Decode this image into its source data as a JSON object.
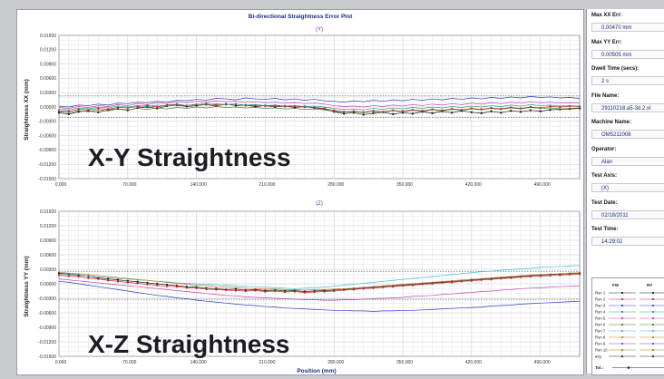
{
  "title": "Bi-directional Straightness Error Plot",
  "x_axis_label": "Position (mm)",
  "colors": {
    "grid": "#c3c6cc",
    "frame": "#6a6e78",
    "title": "#1f2a8a",
    "overlay": "#1b1d22",
    "tol": "#9a3b3b",
    "fwd_marker": "#1b1d22",
    "rev_marker": "#1b1d22"
  },
  "overlays": {
    "top": "X-Y Straightness",
    "bottom": "X-Z Straightness"
  },
  "chart_data": [
    {
      "type": "line",
      "subtitle": "(Y)",
      "ylabel": "Straightness XX (mm)",
      "ylim": [
        -0.015,
        0.015
      ],
      "xlim": [
        0,
        530
      ],
      "y_ticks": [
        "0.01500",
        "0.01200",
        "0.00900",
        "0.00600",
        "0.00300",
        "0.00000",
        "-0.00300",
        "-0.00600",
        "-0.00900",
        "-0.01200",
        "-0.01500"
      ],
      "x_ticks": [
        "0.000",
        "70.000",
        "140.000",
        "210.000",
        "280.000",
        "350.000",
        "420.000",
        "490.000"
      ],
      "x_tick_values": [
        0,
        70,
        140,
        210,
        280,
        350,
        420,
        490
      ],
      "tolerance": [
        0.0023,
        -0.0022
      ],
      "x": [
        0,
        10,
        20,
        30,
        40,
        50,
        60,
        70,
        80,
        90,
        100,
        110,
        120,
        130,
        140,
        150,
        160,
        170,
        180,
        190,
        200,
        210,
        220,
        230,
        240,
        250,
        260,
        270,
        280,
        290,
        300,
        310,
        320,
        330,
        340,
        350,
        360,
        370,
        380,
        390,
        400,
        410,
        420,
        430,
        440,
        450,
        460,
        470,
        480,
        490,
        500,
        510,
        520,
        530
      ],
      "series": [
        {
          "color": "#1c1c1c",
          "values": [
            -0.0012,
            -0.0015,
            -0.001,
            -0.0008,
            -0.0011,
            -0.0006,
            -0.0004,
            -0.0007,
            -0.0002,
            0.0,
            -0.0003,
            0.0002,
            0.0004,
            0.0001,
            0.0003,
            0.0005,
            0.0002,
            0.0006,
            0.0003,
            0.0004,
            0.0001,
            0.0003,
            0.0,
            0.0002,
            -0.0001,
            0.0001,
            -0.0002,
            -0.0004,
            -0.001,
            -0.0014,
            -0.0012,
            -0.0016,
            -0.0013,
            -0.0011,
            -0.0015,
            -0.0012,
            -0.0014,
            -0.001,
            -0.0013,
            -0.0009,
            -0.0012,
            -0.0008,
            -0.0011,
            -0.0013,
            -0.0009,
            -0.0012,
            -0.0008,
            -0.001,
            -0.0007,
            -0.0009,
            -0.0006,
            -0.0005,
            -0.0004,
            -0.0003
          ]
        },
        {
          "color": "#c02a2a",
          "values": [
            -0.0008,
            -0.0009,
            -0.0005,
            -0.0006,
            -0.0003,
            -0.0005,
            -0.0001,
            -0.0002,
            0.0001,
            0.0003,
            0.0,
            0.0004,
            0.0006,
            0.0003,
            0.0005,
            0.0007,
            0.0004,
            0.0005,
            0.0006,
            0.0003,
            0.0004,
            0.0002,
            0.0003,
            0.0001,
            0.0002,
            0.0,
            -0.0001,
            -0.0003,
            -0.0007,
            -0.001,
            -0.0009,
            -0.0011,
            -0.0008,
            -0.001,
            -0.0007,
            -0.0009,
            -0.0006,
            -0.0008,
            -0.0005,
            -0.0007,
            -0.0004,
            -0.0006,
            -0.0003,
            -0.0005,
            -0.0002,
            -0.0004,
            -0.0001,
            -0.0003,
            0.0,
            -0.0002,
            0.0001,
            0.0,
            0.0002,
            0.0001
          ]
        },
        {
          "color": "#2b3cbf",
          "values": [
            0.0002,
            0.0,
            0.0004,
            0.0003,
            0.0006,
            0.0004,
            0.0008,
            0.0007,
            0.001,
            0.0009,
            0.0012,
            0.001,
            0.0014,
            0.0013,
            0.0016,
            0.0014,
            0.0018,
            0.0017,
            0.0015,
            0.0019,
            0.0017,
            0.0016,
            0.0018,
            0.0015,
            0.0017,
            0.0014,
            0.0016,
            0.0013,
            0.0012,
            0.001,
            0.0013,
            0.0011,
            0.0014,
            0.0012,
            0.0015,
            0.0013,
            0.0016,
            0.0014,
            0.0017,
            0.0015,
            0.0018,
            0.0016,
            0.0019,
            0.0017,
            0.002,
            0.0018,
            0.0021,
            0.0019,
            0.0022,
            0.002,
            0.0021,
            0.0019,
            0.002,
            0.0018
          ]
        },
        {
          "color": "#2a9a8a",
          "values": [
            -0.0004,
            -0.0006,
            -0.0002,
            -0.0004,
            0.0,
            -0.0002,
            0.0002,
            0.0,
            0.0003,
            0.0001,
            0.0004,
            0.0002,
            0.0005,
            0.0003,
            0.0006,
            0.0004,
            0.0007,
            0.0005,
            0.0006,
            0.0004,
            0.0005,
            0.0003,
            0.0004,
            0.0002,
            0.0003,
            0.0001,
            0.0002,
            0.0,
            -0.0003,
            -0.0005,
            -0.0004,
            -0.0006,
            -0.0003,
            -0.0005,
            -0.0002,
            -0.0004,
            -0.0001,
            -0.0003,
            0.0,
            -0.0002,
            0.0001,
            -0.0001,
            0.0002,
            0.0,
            0.0003,
            0.0001,
            0.0004,
            0.0002,
            0.0005,
            0.0003,
            0.0004,
            0.0002,
            0.0003,
            0.0002
          ]
        },
        {
          "color": "#c23fb3",
          "values": [
            -0.0001,
            -0.0003,
            0.0001,
            -0.0001,
            0.0003,
            0.0001,
            0.0005,
            0.0003,
            0.0007,
            0.0005,
            0.0009,
            0.0007,
            0.0011,
            0.0009,
            0.0012,
            0.001,
            0.0013,
            0.0011,
            0.0012,
            0.001,
            0.0011,
            0.0009,
            0.001,
            0.0008,
            0.0009,
            0.0007,
            0.0008,
            0.0006,
            0.0003,
            0.0001,
            0.0002,
            0.0,
            0.0003,
            0.0001,
            0.0004,
            0.0002,
            0.0005,
            0.0003,
            0.0006,
            0.0004,
            0.0007,
            0.0005,
            0.0008,
            0.0006,
            0.0009,
            0.0007,
            0.001,
            0.0008,
            0.0011,
            0.0009,
            0.001,
            0.0008,
            0.0009,
            0.0008
          ]
        },
        {
          "color": "#4a7a2a",
          "values": [
            -0.001,
            -0.0012,
            -0.0008,
            -0.001,
            -0.0006,
            -0.0008,
            -0.0004,
            -0.0006,
            -0.0003,
            -0.0005,
            -0.0002,
            -0.0004,
            -0.0001,
            -0.0003,
            0.0,
            -0.0002,
            0.0001,
            -0.0001,
            0.0,
            -0.0002,
            -0.0001,
            -0.0003,
            -0.0002,
            -0.0004,
            -0.0003,
            -0.0005,
            -0.0004,
            -0.0006,
            -0.0009,
            -0.0011,
            -0.001,
            -0.0012,
            -0.0009,
            -0.0011,
            -0.0008,
            -0.001,
            -0.0007,
            -0.0009,
            -0.0006,
            -0.0008,
            -0.0005,
            -0.0007,
            -0.0004,
            -0.0006,
            -0.0003,
            -0.0005,
            -0.0002,
            -0.0004,
            -0.0001,
            -0.0003,
            -0.0002,
            -0.0004,
            -0.0003,
            -0.0002
          ]
        }
      ]
    },
    {
      "type": "line",
      "subtitle": "(Z)",
      "ylabel": "Straightness YY (mm)",
      "ylim": [
        -0.015,
        0.015
      ],
      "xlim": [
        0,
        530
      ],
      "y_ticks": [
        "0.01500",
        "0.01200",
        "0.00900",
        "0.00600",
        "0.00300",
        "0.00000",
        "-0.00300",
        "-0.00600",
        "-0.00900",
        "-0.01200",
        "-0.01500"
      ],
      "x_ticks": [
        "0.000",
        "70.000",
        "140.000",
        "210.000",
        "280.000",
        "350.000",
        "420.000",
        "490.000"
      ],
      "x_tick_values": [
        0,
        70,
        140,
        210,
        280,
        350,
        420,
        490
      ],
      "tolerance": [
        0.0026,
        -0.0032
      ],
      "x": [
        0,
        10,
        20,
        30,
        40,
        50,
        60,
        70,
        80,
        90,
        100,
        110,
        120,
        130,
        140,
        150,
        160,
        170,
        180,
        190,
        200,
        210,
        220,
        230,
        240,
        250,
        260,
        270,
        280,
        290,
        300,
        310,
        320,
        330,
        340,
        350,
        360,
        370,
        380,
        390,
        400,
        410,
        420,
        430,
        440,
        450,
        460,
        470,
        480,
        490,
        500,
        510,
        520,
        530
      ],
      "series": [
        {
          "color": "#1c1c1c",
          "values": [
            0.0022,
            0.002,
            0.0018,
            0.0016,
            0.0012,
            0.001,
            0.0008,
            0.0006,
            0.0004,
            0.0002,
            0.0,
            -0.0002,
            -0.0004,
            -0.0006,
            -0.0007,
            -0.0009,
            -0.001,
            -0.0012,
            -0.0011,
            -0.0013,
            -0.0012,
            -0.0014,
            -0.0013,
            -0.0015,
            -0.0014,
            -0.0016,
            -0.0015,
            -0.0014,
            -0.0013,
            -0.0012,
            -0.001,
            -0.0009,
            -0.0007,
            -0.0006,
            -0.0004,
            -0.0003,
            -0.0001,
            0.0,
            0.0002,
            0.0003,
            0.0005,
            0.0006,
            0.0008,
            0.0009,
            0.0011,
            0.0012,
            0.0014,
            0.0015,
            0.0017,
            0.0018,
            0.0019,
            0.002,
            0.0021,
            0.0022
          ]
        },
        {
          "color": "#c02a2a",
          "values": [
            0.0018,
            0.0016,
            0.0015,
            0.0012,
            0.001,
            0.0007,
            0.0005,
            0.0003,
            0.0001,
            -0.0001,
            -0.0003,
            -0.0005,
            -0.0006,
            -0.0008,
            -0.0009,
            -0.0011,
            -0.0012,
            -0.0013,
            -0.0014,
            -0.0015,
            -0.0014,
            -0.0016,
            -0.0015,
            -0.0017,
            -0.0016,
            -0.0018,
            -0.0017,
            -0.0016,
            -0.0015,
            -0.0013,
            -0.0012,
            -0.001,
            -0.0009,
            -0.0007,
            -0.0006,
            -0.0004,
            -0.0003,
            -0.0001,
            0.0,
            0.0002,
            0.0003,
            0.0005,
            0.0006,
            0.0008,
            0.0009,
            0.0011,
            0.0012,
            0.0014,
            0.0015,
            0.0016,
            0.0017,
            0.0018,
            0.0019,
            0.002
          ]
        },
        {
          "color": "#2b3cbf",
          "values": [
            0.0005,
            0.0003,
            0.0,
            -0.0003,
            -0.0006,
            -0.0009,
            -0.0012,
            -0.0015,
            -0.0018,
            -0.0021,
            -0.0024,
            -0.0026,
            -0.0029,
            -0.0031,
            -0.0034,
            -0.0036,
            -0.0038,
            -0.004,
            -0.0042,
            -0.0044,
            -0.0045,
            -0.0047,
            -0.0048,
            -0.005,
            -0.0051,
            -0.0052,
            -0.0053,
            -0.0054,
            -0.0055,
            -0.0055,
            -0.0056,
            -0.0056,
            -0.0057,
            -0.0056,
            -0.0056,
            -0.0055,
            -0.0055,
            -0.0054,
            -0.0053,
            -0.0052,
            -0.0051,
            -0.005,
            -0.0049,
            -0.0048,
            -0.0046,
            -0.0045,
            -0.0044,
            -0.0042,
            -0.0041,
            -0.004,
            -0.0039,
            -0.0038,
            -0.0037,
            -0.0036
          ]
        },
        {
          "color": "#3bbfcf",
          "values": [
            0.002,
            0.0019,
            0.0017,
            0.0016,
            0.0014,
            0.0013,
            0.0011,
            0.001,
            0.0008,
            0.0007,
            0.0005,
            0.0004,
            0.0002,
            0.0001,
            0.0,
            -0.0001,
            -0.0002,
            -0.0003,
            -0.0004,
            -0.0005,
            -0.0006,
            -0.0007,
            -0.0008,
            -0.0009,
            -0.001,
            -0.0009,
            -0.0008,
            -0.0007,
            -0.0005,
            -0.0003,
            -0.0001,
            0.0001,
            0.0003,
            0.0005,
            0.0007,
            0.0009,
            0.0011,
            0.0013,
            0.0015,
            0.0017,
            0.0019,
            0.0021,
            0.0023,
            0.0025,
            0.0026,
            0.0028,
            0.0029,
            0.0031,
            0.0032,
            0.0034,
            0.0035,
            0.0036,
            0.0037,
            0.0038
          ]
        },
        {
          "color": "#c23fb3",
          "values": [
            0.001,
            0.0008,
            0.0006,
            0.0004,
            0.0002,
            0.0,
            -0.0002,
            -0.0004,
            -0.0006,
            -0.0008,
            -0.001,
            -0.0012,
            -0.0014,
            -0.0016,
            -0.0018,
            -0.002,
            -0.0022,
            -0.0024,
            -0.0025,
            -0.0027,
            -0.0028,
            -0.0029,
            -0.003,
            -0.0031,
            -0.0032,
            -0.0033,
            -0.0033,
            -0.0034,
            -0.0034,
            -0.0033,
            -0.0033,
            -0.0032,
            -0.0031,
            -0.003,
            -0.0029,
            -0.0028,
            -0.0026,
            -0.0025,
            -0.0024,
            -0.0022,
            -0.0021,
            -0.0019,
            -0.0018,
            -0.0016,
            -0.0015,
            -0.0013,
            -0.0012,
            -0.001,
            -0.0009,
            -0.0008,
            -0.0007,
            -0.0006,
            -0.0005,
            -0.0004
          ]
        },
        {
          "color": "#c77a2a",
          "values": [
            0.0024,
            0.0022,
            0.0021,
            0.0019,
            0.0017,
            0.0015,
            0.0013,
            0.0011,
            0.0009,
            0.0007,
            0.0005,
            0.0003,
            0.0001,
            -0.0001,
            -0.0003,
            -0.0004,
            -0.0006,
            -0.0007,
            -0.0008,
            -0.0009,
            -0.001,
            -0.0011,
            -0.0011,
            -0.0012,
            -0.0012,
            -0.0013,
            -0.0012,
            -0.0012,
            -0.0011,
            -0.001,
            -0.0009,
            -0.0007,
            -0.0006,
            -0.0004,
            -0.0003,
            -0.0001,
            0.0,
            0.0002,
            0.0003,
            0.0005,
            0.0006,
            0.0008,
            0.0009,
            0.0011,
            0.0012,
            0.0014,
            0.0015,
            0.0017,
            0.0018,
            0.0019,
            0.002,
            0.0021,
            0.0022,
            0.0023
          ]
        }
      ]
    }
  ],
  "sidebar": {
    "fields": [
      {
        "label": "Max XX Err:",
        "value": "0.00470 mm"
      },
      {
        "label": "Max YY Err:",
        "value": "0.00505 mm"
      },
      {
        "label": "Dwell Time (secs):",
        "value": "2 s"
      },
      {
        "label": "File Name:",
        "value": "29110218.a5-3d.2.xl"
      },
      {
        "label": "Machine Name:",
        "value": "OM5211008"
      },
      {
        "label": "Operator:",
        "value": "Alan"
      },
      {
        "label": "Test Axis:",
        "value": "(X)"
      },
      {
        "label": "Test Date:",
        "value": "02/18/2011"
      },
      {
        "label": "Test Time:",
        "value": "14:29:02"
      }
    ],
    "legend": {
      "col_fw": "FW",
      "col_rv": "RV",
      "runs": [
        "Run 1",
        "Run 2",
        "Run 3",
        "Run 4",
        "Run 5",
        "Run 6",
        "Run 7",
        "Run 8",
        "Run 9",
        "Run 10"
      ],
      "avg": "avg.",
      "tol": "Tol.:",
      "run_colors": [
        "#1c1c1c",
        "#c02a2a",
        "#2b3cbf",
        "#2a9a8a",
        "#c23fb3",
        "#4a7a2a",
        "#3bbfcf",
        "#c77a2a",
        "#7a3bbf",
        "#8a8a2a"
      ]
    }
  }
}
